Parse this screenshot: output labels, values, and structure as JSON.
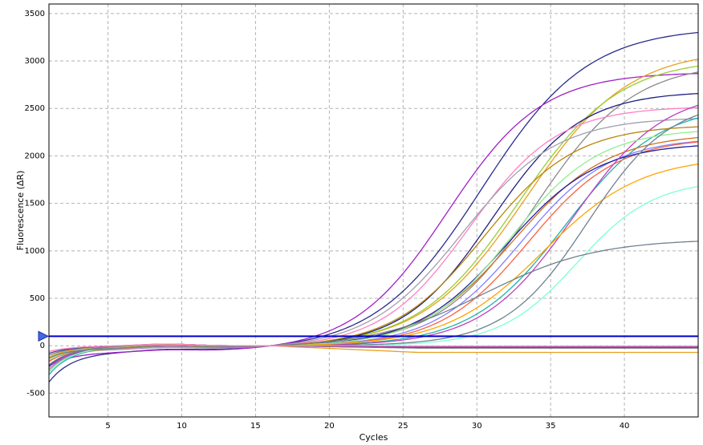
{
  "chart_data": {
    "type": "line",
    "title": "",
    "xlabel": "Cycles",
    "ylabel": "Fluorescence (ΔR)",
    "xlim": [
      1,
      45
    ],
    "ylim": [
      -750,
      3600
    ],
    "x_ticks": [
      5,
      10,
      15,
      20,
      25,
      30,
      35,
      40
    ],
    "y_ticks": [
      -500,
      0,
      500,
      1000,
      1500,
      2000,
      2500,
      3000,
      3500
    ],
    "grid": true,
    "legend": "none",
    "threshold": {
      "value": 100,
      "color": "#0000cc"
    },
    "series": [
      {
        "color": "#2b2b8f",
        "plateau": 3420,
        "midpoint": 30.3,
        "slope": 3.6,
        "start": -320
      },
      {
        "color": "#a020c8",
        "plateau": 2950,
        "midpoint": 28.0,
        "slope": 3.2,
        "start": -150
      },
      {
        "color": "#e8a020",
        "plateau": 3150,
        "midpoint": 33.3,
        "slope": 3.5,
        "start": -200
      },
      {
        "color": "#9acd32",
        "plateau": 3050,
        "midpoint": 32.8,
        "slope": 3.4,
        "start": -100
      },
      {
        "color": "#8a8a8a",
        "plateau": 3000,
        "midpoint": 34.0,
        "slope": 3.3,
        "start": -120
      },
      {
        "color": "#202080",
        "plateau": 2700,
        "midpoint": 31.0,
        "slope": 3.0,
        "start": -200
      },
      {
        "color": "#ff80c0",
        "plateau": 2550,
        "midpoint": 29.5,
        "slope": 3.0,
        "start": -180
      },
      {
        "color": "#a0a0b0",
        "plateau": 2450,
        "midpoint": 29.0,
        "slope": 3.2,
        "start": -80
      },
      {
        "color": "#20b2aa",
        "plateau": 2550,
        "midpoint": 36.0,
        "slope": 3.2,
        "start": -300
      },
      {
        "color": "#8080ff",
        "plateau": 2200,
        "midpoint": 33.0,
        "slope": 3.0,
        "start": -240
      },
      {
        "color": "#b8860b",
        "plateau": 2350,
        "midpoint": 30.5,
        "slope": 3.1,
        "start": -180
      },
      {
        "color": "#d07020",
        "plateau": 2250,
        "midpoint": 32.5,
        "slope": 3.2,
        "start": -150
      },
      {
        "color": "#ff6040",
        "plateau": 2200,
        "midpoint": 33.5,
        "slope": 3.0,
        "start": -160
      },
      {
        "color": "#2020a0",
        "plateau": 2150,
        "midpoint": 32.0,
        "slope": 3.1,
        "start": -200
      },
      {
        "color": "#c040c0",
        "plateau": 2700,
        "midpoint": 36.5,
        "slope": 3.1,
        "start": -220
      },
      {
        "color": "#90ee90",
        "plateau": 2300,
        "midpoint": 32.3,
        "slope": 3.0,
        "start": -140
      },
      {
        "color": "#ffa500",
        "plateau": 2000,
        "midpoint": 34.5,
        "slope": 3.3,
        "start": -260
      },
      {
        "color": "#7fffd4",
        "plateau": 1750,
        "midpoint": 36.8,
        "slope": 2.6,
        "start": -280
      },
      {
        "color": "#708090",
        "plateau": 1150,
        "midpoint": 30.5,
        "slope": 3.8,
        "start": -100
      },
      {
        "color": "#708090",
        "plateau": 2600,
        "midpoint": 37.5,
        "slope": 2.8,
        "start": -200
      }
    ],
    "flat_series": [
      {
        "color": "#e8a020",
        "end_value": -70,
        "start": -120
      },
      {
        "color": "#808080",
        "end_value": -25,
        "start": -100
      },
      {
        "color": "#4040a0",
        "end_value": -15,
        "start": -80
      },
      {
        "color": "#ff80c0",
        "end_value": -5,
        "start": -60
      }
    ]
  },
  "threshold_marker": {
    "icon": "triangle-marker-icon",
    "color": "#4169e1"
  }
}
